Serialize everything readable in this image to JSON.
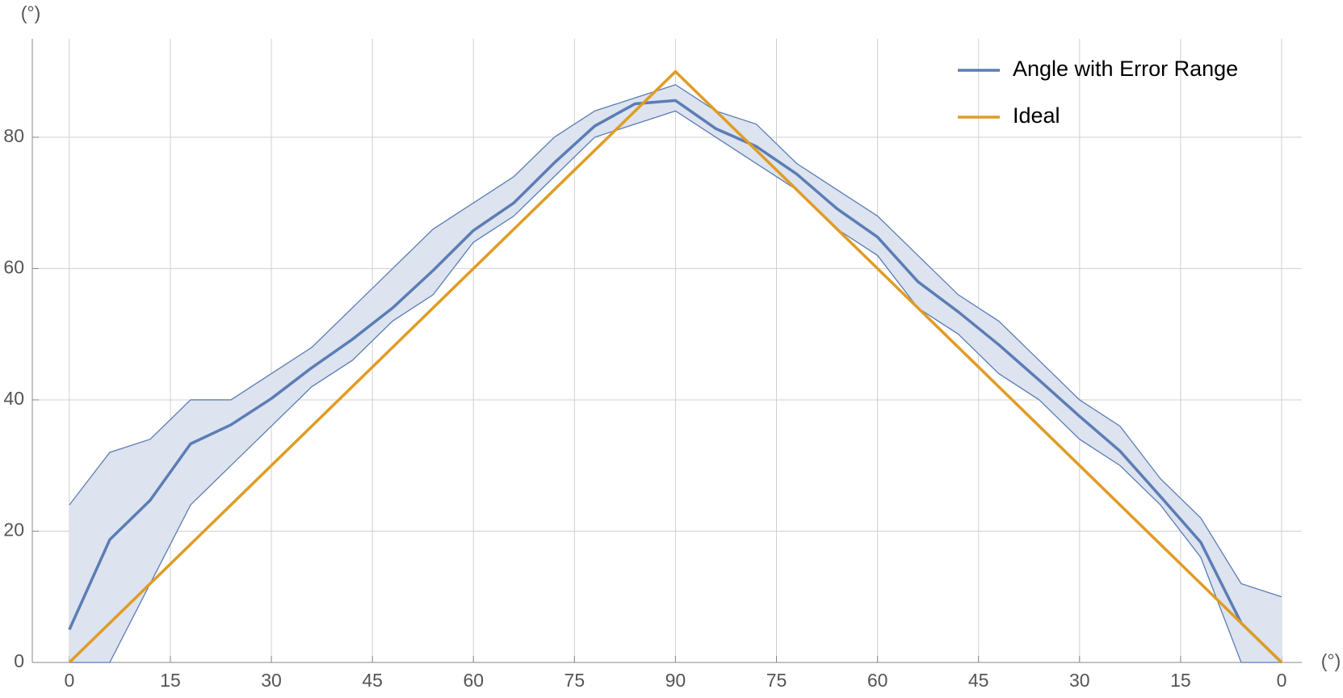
{
  "chart_data": {
    "type": "line",
    "x_label": "(°)",
    "y_label": "(°)",
    "xlim": [
      -5.5,
      183
    ],
    "ylim": [
      0,
      95
    ],
    "xticks": [
      0,
      15,
      30,
      45,
      60,
      75,
      90,
      {
        "value": 105,
        "label": "75"
      },
      {
        "value": 120,
        "label": "60"
      },
      {
        "value": 135,
        "label": "45"
      },
      {
        "value": 150,
        "label": "30"
      },
      {
        "value": 165,
        "label": "15"
      },
      {
        "value": 180,
        "label": "0"
      }
    ],
    "yticks": [
      0,
      20,
      40,
      60,
      80
    ],
    "grid": true,
    "legend": "upper right",
    "series": [
      {
        "name": "Angle with Error Range",
        "color": "#5b7db5",
        "band_color": "#dde3ef",
        "x": [
          0,
          6,
          12,
          18,
          24,
          30,
          36,
          42,
          48,
          54,
          60,
          66,
          72,
          78,
          84,
          90,
          96,
          102,
          108,
          114,
          120,
          126,
          132,
          138,
          144,
          150,
          156,
          162,
          168,
          174,
          180
        ],
        "values": [
          5,
          18.7,
          24.7,
          33.3,
          36.2,
          40.2,
          44.9,
          49.2,
          54,
          59.7,
          65.8,
          70,
          76.1,
          81.7,
          85.1,
          85.6,
          81.3,
          78.6,
          74.4,
          69.1,
          64.8,
          58,
          53.4,
          48.4,
          43,
          37.5,
          32.2,
          25.3,
          18.3,
          6,
          0
        ],
        "upper": [
          24,
          32,
          34,
          40,
          40,
          44,
          48,
          54,
          60,
          66,
          70,
          74,
          80,
          84,
          86,
          88,
          84,
          82,
          76,
          72,
          68,
          62,
          56,
          52,
          46,
          40,
          36,
          28,
          22,
          12,
          10
        ],
        "lower": [
          0,
          0,
          12,
          24,
          30,
          36,
          42,
          46,
          52,
          56,
          64,
          68,
          74,
          80,
          82,
          84,
          80,
          76,
          72,
          66,
          62,
          54,
          50,
          44,
          40,
          34,
          30,
          24,
          16,
          0,
          0
        ]
      },
      {
        "name": "Ideal",
        "color": "#e09c24",
        "x": [
          0,
          90,
          180
        ],
        "values": [
          0,
          90,
          0
        ]
      }
    ]
  }
}
